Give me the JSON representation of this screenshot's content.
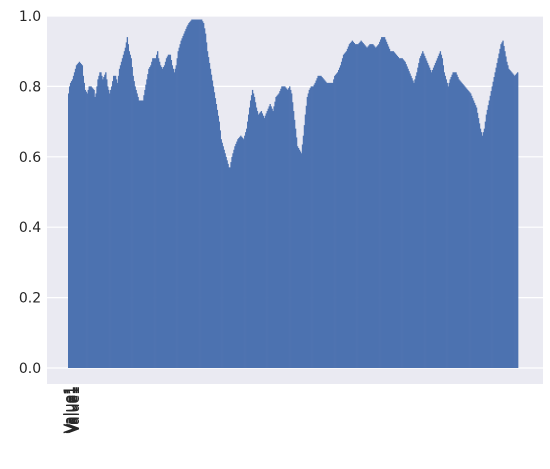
{
  "chart_data": {
    "type": "bar",
    "title": "",
    "xlabel": "",
    "ylabel": "",
    "ylim": [
      0,
      1.0
    ],
    "yticks": [
      0.0,
      0.2,
      0.4,
      0.6,
      0.8,
      1.0
    ],
    "ytick_labels": [
      "0.0",
      "0.2",
      "0.4",
      "0.6",
      "0.8",
      "1.0"
    ],
    "grid": true,
    "bar_color": "#4c72b0",
    "background_color": "#eaeaf2",
    "n_bars": 460,
    "profile": [
      [
        0,
        0.78
      ],
      [
        1,
        0.8
      ],
      [
        2,
        0.81
      ],
      [
        4,
        0.82
      ],
      [
        5,
        0.83
      ],
      [
        8,
        0.86
      ],
      [
        11,
        0.87
      ],
      [
        14,
        0.86
      ],
      [
        15,
        0.83
      ],
      [
        17,
        0.79
      ],
      [
        19,
        0.78
      ],
      [
        21,
        0.8
      ],
      [
        23,
        0.8
      ],
      [
        26,
        0.79
      ],
      [
        27,
        0.77
      ],
      [
        28,
        0.78
      ],
      [
        30,
        0.82
      ],
      [
        32,
        0.84
      ],
      [
        33,
        0.84
      ],
      [
        35,
        0.82
      ],
      [
        38,
        0.84
      ],
      [
        40,
        0.8
      ],
      [
        42,
        0.78
      ],
      [
        44,
        0.8
      ],
      [
        46,
        0.83
      ],
      [
        48,
        0.83
      ],
      [
        50,
        0.81
      ],
      [
        52,
        0.85
      ],
      [
        55,
        0.88
      ],
      [
        58,
        0.91
      ],
      [
        60,
        0.94
      ],
      [
        62,
        0.9
      ],
      [
        64,
        0.88
      ],
      [
        66,
        0.83
      ],
      [
        68,
        0.8
      ],
      [
        70,
        0.78
      ],
      [
        72,
        0.76
      ],
      [
        74,
        0.76
      ],
      [
        76,
        0.76
      ],
      [
        78,
        0.79
      ],
      [
        80,
        0.82
      ],
      [
        82,
        0.85
      ],
      [
        84,
        0.86
      ],
      [
        86,
        0.88
      ],
      [
        89,
        0.88
      ],
      [
        91,
        0.9
      ],
      [
        92,
        0.88
      ],
      [
        94,
        0.86
      ],
      [
        96,
        0.85
      ],
      [
        98,
        0.86
      ],
      [
        100,
        0.88
      ],
      [
        102,
        0.89
      ],
      [
        104,
        0.89
      ],
      [
        106,
        0.86
      ],
      [
        108,
        0.84
      ],
      [
        110,
        0.86
      ],
      [
        112,
        0.9
      ],
      [
        115,
        0.93
      ],
      [
        118,
        0.95
      ],
      [
        121,
        0.97
      ],
      [
        123,
        0.98
      ],
      [
        126,
        0.99
      ],
      [
        129,
        0.99
      ],
      [
        133,
        0.99
      ],
      [
        136,
        0.99
      ],
      [
        138,
        0.98
      ],
      [
        140,
        0.95
      ],
      [
        142,
        0.9
      ],
      [
        145,
        0.85
      ],
      [
        148,
        0.8
      ],
      [
        151,
        0.75
      ],
      [
        154,
        0.7
      ],
      [
        156,
        0.65
      ],
      [
        158,
        0.63
      ],
      [
        160,
        0.61
      ],
      [
        162,
        0.59
      ],
      [
        164,
        0.57
      ],
      [
        165,
        0.57
      ],
      [
        167,
        0.6
      ],
      [
        170,
        0.63
      ],
      [
        173,
        0.65
      ],
      [
        176,
        0.66
      ],
      [
        179,
        0.65
      ],
      [
        182,
        0.68
      ],
      [
        184,
        0.72
      ],
      [
        186,
        0.76
      ],
      [
        188,
        0.79
      ],
      [
        190,
        0.77
      ],
      [
        192,
        0.74
      ],
      [
        194,
        0.72
      ],
      [
        197,
        0.73
      ],
      [
        200,
        0.71
      ],
      [
        203,
        0.73
      ],
      [
        206,
        0.75
      ],
      [
        209,
        0.73
      ],
      [
        212,
        0.77
      ],
      [
        215,
        0.78
      ],
      [
        218,
        0.8
      ],
      [
        221,
        0.8
      ],
      [
        224,
        0.79
      ],
      [
        226,
        0.8
      ],
      [
        228,
        0.78
      ],
      [
        230,
        0.73
      ],
      [
        232,
        0.68
      ],
      [
        234,
        0.63
      ],
      [
        236,
        0.62
      ],
      [
        238,
        0.61
      ],
      [
        240,
        0.66
      ],
      [
        242,
        0.72
      ],
      [
        244,
        0.77
      ],
      [
        246,
        0.79
      ],
      [
        248,
        0.8
      ],
      [
        250,
        0.8
      ],
      [
        252,
        0.81
      ],
      [
        255,
        0.83
      ],
      [
        258,
        0.83
      ],
      [
        261,
        0.82
      ],
      [
        264,
        0.81
      ],
      [
        267,
        0.81
      ],
      [
        270,
        0.81
      ],
      [
        272,
        0.83
      ],
      [
        275,
        0.84
      ],
      [
        278,
        0.86
      ],
      [
        281,
        0.89
      ],
      [
        284,
        0.9
      ],
      [
        287,
        0.92
      ],
      [
        290,
        0.93
      ],
      [
        293,
        0.92
      ],
      [
        296,
        0.92
      ],
      [
        299,
        0.93
      ],
      [
        302,
        0.92
      ],
      [
        305,
        0.91
      ],
      [
        308,
        0.92
      ],
      [
        311,
        0.92
      ],
      [
        314,
        0.91
      ],
      [
        317,
        0.92
      ],
      [
        320,
        0.94
      ],
      [
        323,
        0.94
      ],
      [
        326,
        0.92
      ],
      [
        329,
        0.9
      ],
      [
        332,
        0.9
      ],
      [
        335,
        0.89
      ],
      [
        338,
        0.88
      ],
      [
        341,
        0.88
      ],
      [
        344,
        0.87
      ],
      [
        347,
        0.85
      ],
      [
        350,
        0.83
      ],
      [
        353,
        0.81
      ],
      [
        356,
        0.84
      ],
      [
        359,
        0.88
      ],
      [
        362,
        0.9
      ],
      [
        365,
        0.88
      ],
      [
        368,
        0.86
      ],
      [
        371,
        0.84
      ],
      [
        374,
        0.86
      ],
      [
        377,
        0.88
      ],
      [
        380,
        0.9
      ],
      [
        382,
        0.88
      ],
      [
        384,
        0.84
      ],
      [
        386,
        0.82
      ],
      [
        388,
        0.8
      ],
      [
        390,
        0.82
      ],
      [
        393,
        0.84
      ],
      [
        396,
        0.84
      ],
      [
        399,
        0.82
      ],
      [
        402,
        0.81
      ],
      [
        405,
        0.8
      ],
      [
        408,
        0.79
      ],
      [
        411,
        0.78
      ],
      [
        414,
        0.76
      ],
      [
        417,
        0.74
      ],
      [
        419,
        0.71
      ],
      [
        421,
        0.68
      ],
      [
        423,
        0.66
      ],
      [
        425,
        0.68
      ],
      [
        427,
        0.72
      ],
      [
        430,
        0.76
      ],
      [
        433,
        0.8
      ],
      [
        436,
        0.84
      ],
      [
        439,
        0.88
      ],
      [
        442,
        0.92
      ],
      [
        444,
        0.93
      ],
      [
        446,
        0.9
      ],
      [
        448,
        0.87
      ],
      [
        450,
        0.85
      ],
      [
        453,
        0.84
      ],
      [
        456,
        0.83
      ],
      [
        459,
        0.84
      ]
    ],
    "x_tick_labels_visible": [
      "Value1",
      "Value1",
      "Value1",
      "Value1",
      "Value1"
    ]
  }
}
